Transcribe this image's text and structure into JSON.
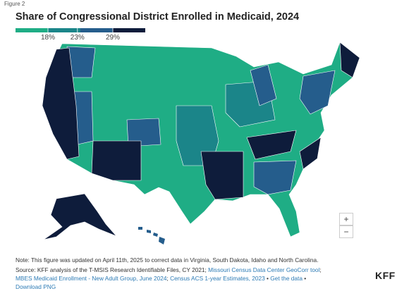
{
  "figure_label": "Figure 2",
  "title": "Share of Congressional District Enrolled in Medicaid, 2024",
  "legend": {
    "colors": [
      "#1fad85",
      "#1b8589",
      "#255d8c",
      "#0e1c3b"
    ],
    "ticks": [
      {
        "value": 18,
        "label": "18%"
      },
      {
        "value": 23,
        "label": "23%"
      },
      {
        "value": 29,
        "label": "29%"
      }
    ]
  },
  "zoom": {
    "in": "+",
    "out": "−"
  },
  "note": "Note: This figure was updated on April 11th, 2025 to correct data in Virginia, South Dakota, Idaho and North Carolina.",
  "source": [
    {
      "text": "Source: KFF analysis of the T-MSIS Research Identifiable Files, CY 2021; ",
      "link": false
    },
    {
      "text": "Missouri Census Data Center GeoCorr tool",
      "link": true
    },
    {
      "text": "; ",
      "link": false
    },
    {
      "text": "MBES Medicaid Enrollment - New Adult Group, June 2024",
      "link": true
    },
    {
      "text": "; ",
      "link": false
    },
    {
      "text": "Census ACS 1-year Estimates, 2023",
      "link": true
    },
    {
      "text": " • ",
      "link": false
    },
    {
      "text": "Get the data",
      "link": true
    },
    {
      "text": " • ",
      "link": false
    },
    {
      "text": "Download PNG",
      "link": true
    }
  ],
  "logo": "KFF"
}
